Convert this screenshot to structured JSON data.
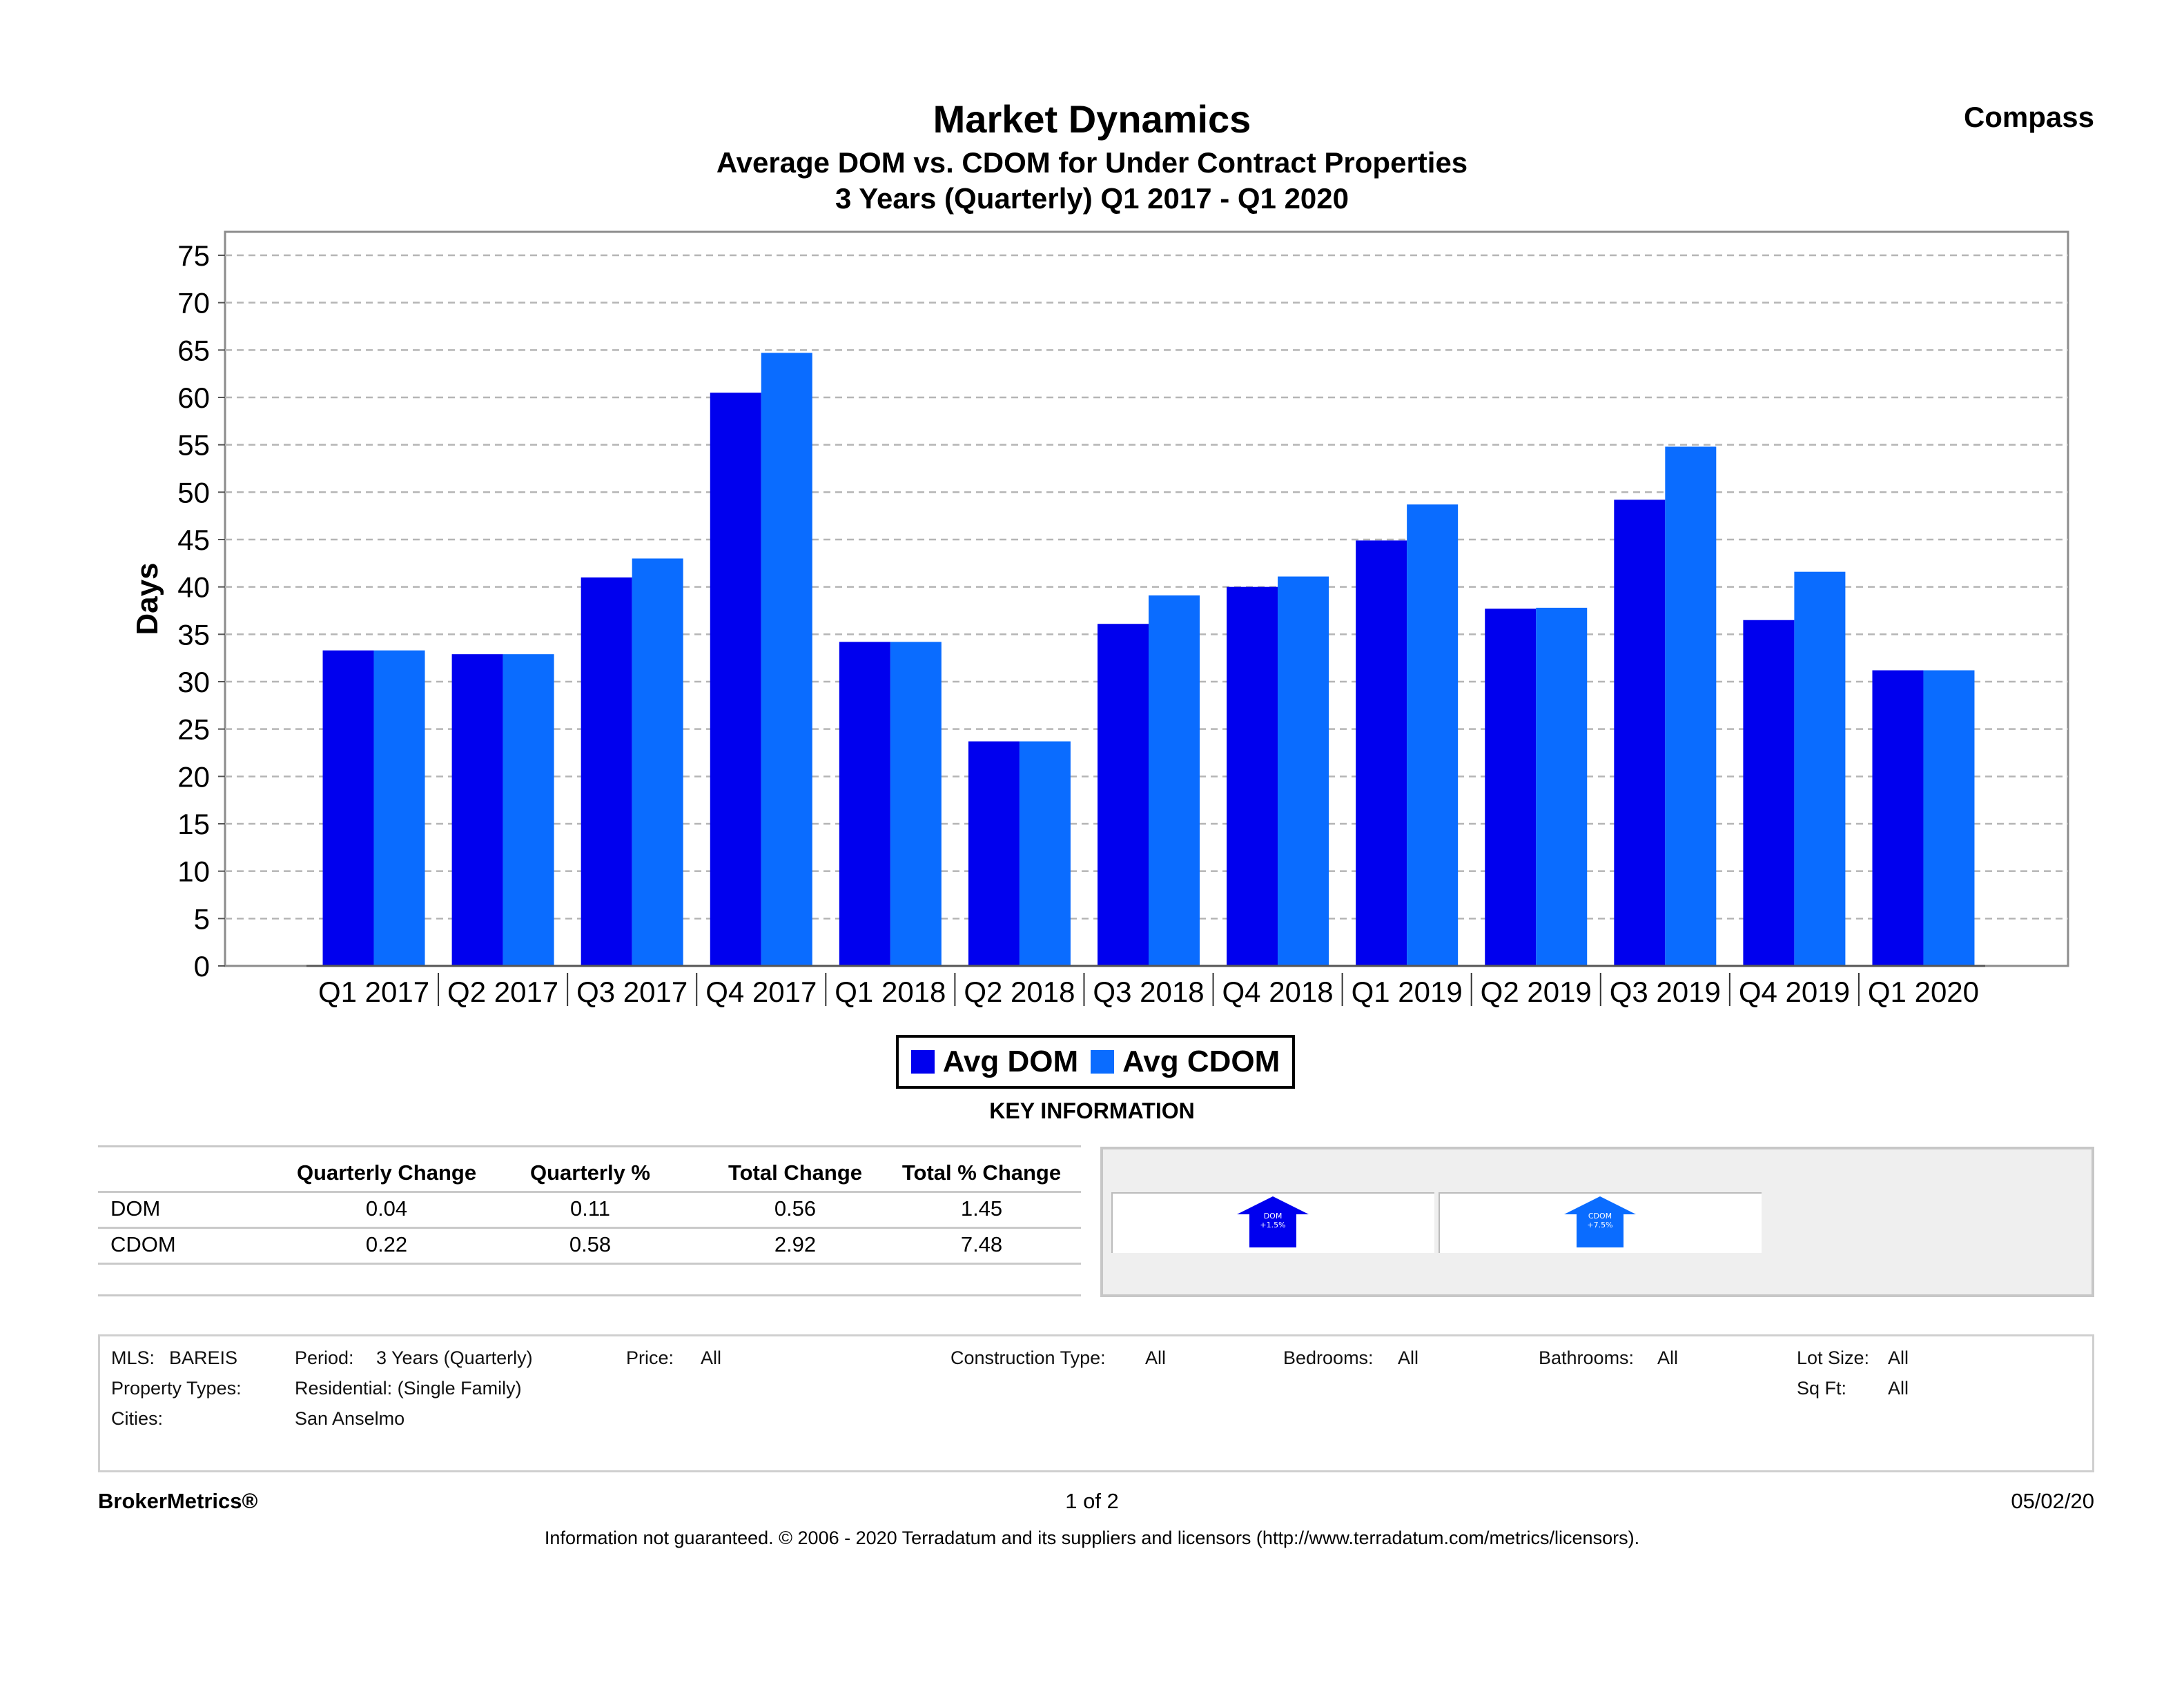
{
  "header": {
    "title": "Market Dynamics",
    "subtitle": "Average DOM vs. CDOM for Under Contract Properties",
    "subtitle2": "3 Years (Quarterly) Q1 2017 - Q1 2020",
    "brand": "Compass"
  },
  "chart_data": {
    "type": "bar",
    "ylabel": "Days",
    "ylim": [
      0,
      75
    ],
    "yticks": [
      "0",
      "5",
      "10",
      "15",
      "20",
      "25",
      "30",
      "35",
      "40",
      "45",
      "50",
      "55",
      "60",
      "65",
      "70",
      "75"
    ],
    "grid": "horizontal dashed",
    "categories": [
      "Q1 2017",
      "Q2 2017",
      "Q3 2017",
      "Q4 2017",
      "Q1 2018",
      "Q2 2018",
      "Q3 2018",
      "Q4 2018",
      "Q1 2019",
      "Q2 2019",
      "Q3 2019",
      "Q4 2019",
      "Q1 2020"
    ],
    "series": [
      {
        "name": "Avg DOM",
        "color": "#0000ee",
        "values": [
          33.3,
          32.9,
          41.0,
          60.5,
          34.2,
          23.7,
          36.1,
          40.0,
          44.9,
          37.7,
          49.2,
          36.5,
          31.2
        ]
      },
      {
        "name": "Avg CDOM",
        "color": "#0a6cff",
        "values": [
          33.3,
          32.9,
          43.0,
          64.7,
          34.2,
          23.7,
          39.1,
          41.1,
          48.7,
          37.8,
          54.8,
          41.6,
          31.2
        ]
      }
    ],
    "legend_position": "bottom-center"
  },
  "legend": {
    "dom": "Avg DOM",
    "cdom": "Avg CDOM",
    "dom_color": "#0000ee",
    "cdom_color": "#0a6cff"
  },
  "key_info": {
    "title": "KEY INFORMATION",
    "headers": [
      "Quarterly Change",
      "Quarterly %",
      "Total Change",
      "Total % Change"
    ],
    "rows": [
      {
        "label": "DOM",
        "values": [
          "0.04",
          "0.11",
          "0.56",
          "1.45"
        ]
      },
      {
        "label": "CDOM",
        "values": [
          "0.22",
          "0.58",
          "2.92",
          "7.48"
        ]
      }
    ],
    "indicators": [
      {
        "name": "DOM",
        "value": "+1.5%",
        "color": "#0000ee"
      },
      {
        "name": "CDOM",
        "value": "+7.5%",
        "color": "#0a6cff"
      }
    ]
  },
  "criteria": {
    "mls_label": "MLS:",
    "mls_value": "BAREIS",
    "period_label": "Period:",
    "period_value": "3 Years (Quarterly)",
    "price_label": "Price:",
    "price_value": "All",
    "construction_label": "Construction Type:",
    "construction_value": "All",
    "bedrooms_label": "Bedrooms:",
    "bedrooms_value": "All",
    "bathrooms_label": "Bathrooms:",
    "bathrooms_value": "All",
    "lot_label": "Lot Size:",
    "lot_value": "All",
    "ptype_label": "Property Types:",
    "ptype_value": "Residential: (Single Family)",
    "sqft_label": "Sq Ft:",
    "sqft_value": "All",
    "cities_label": "Cities:",
    "cities_value": "San Anselmo"
  },
  "footer": {
    "left": "BrokerMetrics®",
    "center": "1 of 2",
    "right": "05/02/20",
    "disclaimer": "Information not guaranteed.  © 2006 - 2020 Terradatum and its suppliers and licensors (http://www.terradatum.com/metrics/licensors)."
  }
}
